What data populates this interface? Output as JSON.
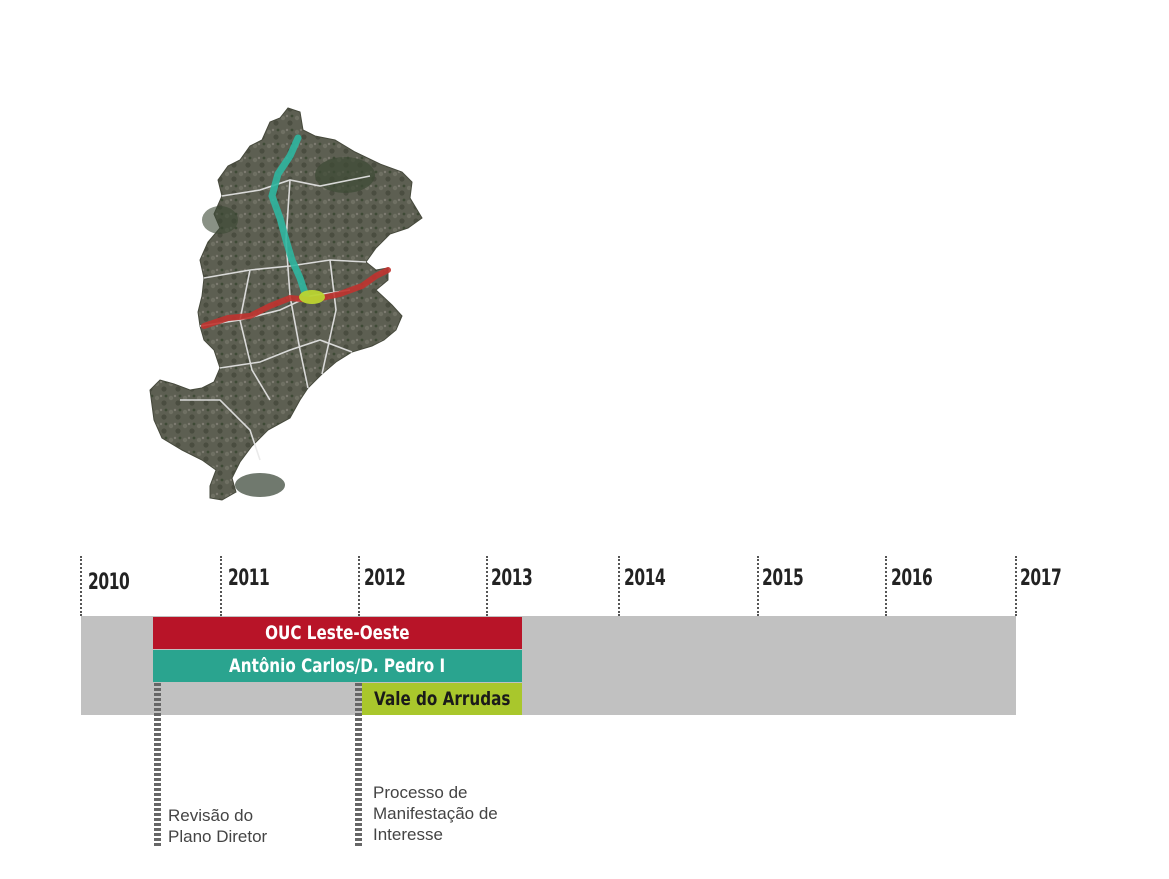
{
  "years": [
    {
      "label": "2010"
    },
    {
      "label": "2011"
    },
    {
      "label": "2012"
    },
    {
      "label": "2013"
    },
    {
      "label": "2014"
    },
    {
      "label": "2015"
    },
    {
      "label": "2016"
    },
    {
      "label": "2017"
    }
  ],
  "bars": {
    "leste_oeste": {
      "label": "OUC Leste-Oeste",
      "color": "#b81428"
    },
    "antonio_carlos": {
      "label": "Antônio Carlos/D. Pedro I",
      "color": "#2aa48f"
    },
    "vale_arrudas": {
      "label": "Vale do Arrudas",
      "color": "#a9c72c"
    }
  },
  "milestones": {
    "plano_diretor": {
      "lines": [
        "Revisão do",
        "Plano Diretor"
      ]
    },
    "manifestacao": {
      "lines": [
        "Processo de",
        "Manifestação de",
        "Interesse"
      ]
    }
  },
  "map": {
    "icon": "city-satellite-map-icon"
  }
}
